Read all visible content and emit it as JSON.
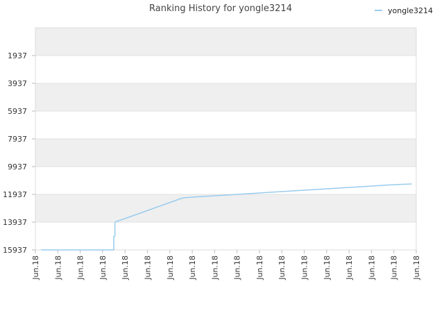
{
  "chart_data": {
    "type": "line",
    "title": "Ranking History for yongle3214",
    "legend": {
      "position": "top-right",
      "entries": [
        "yongle3214"
      ]
    },
    "y_axis": {
      "reversed": true,
      "ylim": [
        -63,
        15937
      ],
      "ticks": [
        1937,
        3937,
        5937,
        7937,
        9937,
        11937,
        13937,
        15937
      ],
      "tick_labels": [
        "1937",
        "3937",
        "5937",
        "7937",
        "9937",
        "11937",
        "13937",
        "15937"
      ]
    },
    "x_axis": {
      "ticks": [
        0,
        1,
        2,
        3,
        4,
        5,
        6,
        7,
        8,
        9,
        10,
        11,
        12,
        13,
        14,
        15,
        16,
        17
      ],
      "tick_labels": [
        "Jun.18",
        "Jun.18",
        "Jun.18",
        "Jun.18",
        "Jun.18",
        "Jun.18",
        "Jun.18",
        "Jun.18",
        "Jun.18",
        "Jun.18",
        "Jun.18",
        "Jun.18",
        "Jun.18",
        "Jun.18",
        "Jun.18",
        "Jun.18",
        "Jun.18",
        "Jun.18"
      ],
      "xlim": [
        0,
        17
      ]
    },
    "series": [
      {
        "name": "yongle3214",
        "color": "#99ccee",
        "x": [
          0.25,
          3.5,
          3.5,
          3.55,
          3.55,
          6.5,
          6.6,
          7.0,
          8.0,
          10.0,
          12.0,
          14.0,
          16.0,
          16.8
        ],
        "y": [
          15937,
          15937,
          14960,
          14960,
          13937,
          12237,
          12187,
          12137,
          12037,
          11837,
          11637,
          11437,
          11237,
          11187
        ]
      }
    ],
    "band_colors": [
      "#efefef",
      "#ffffff"
    ],
    "grid": true
  }
}
